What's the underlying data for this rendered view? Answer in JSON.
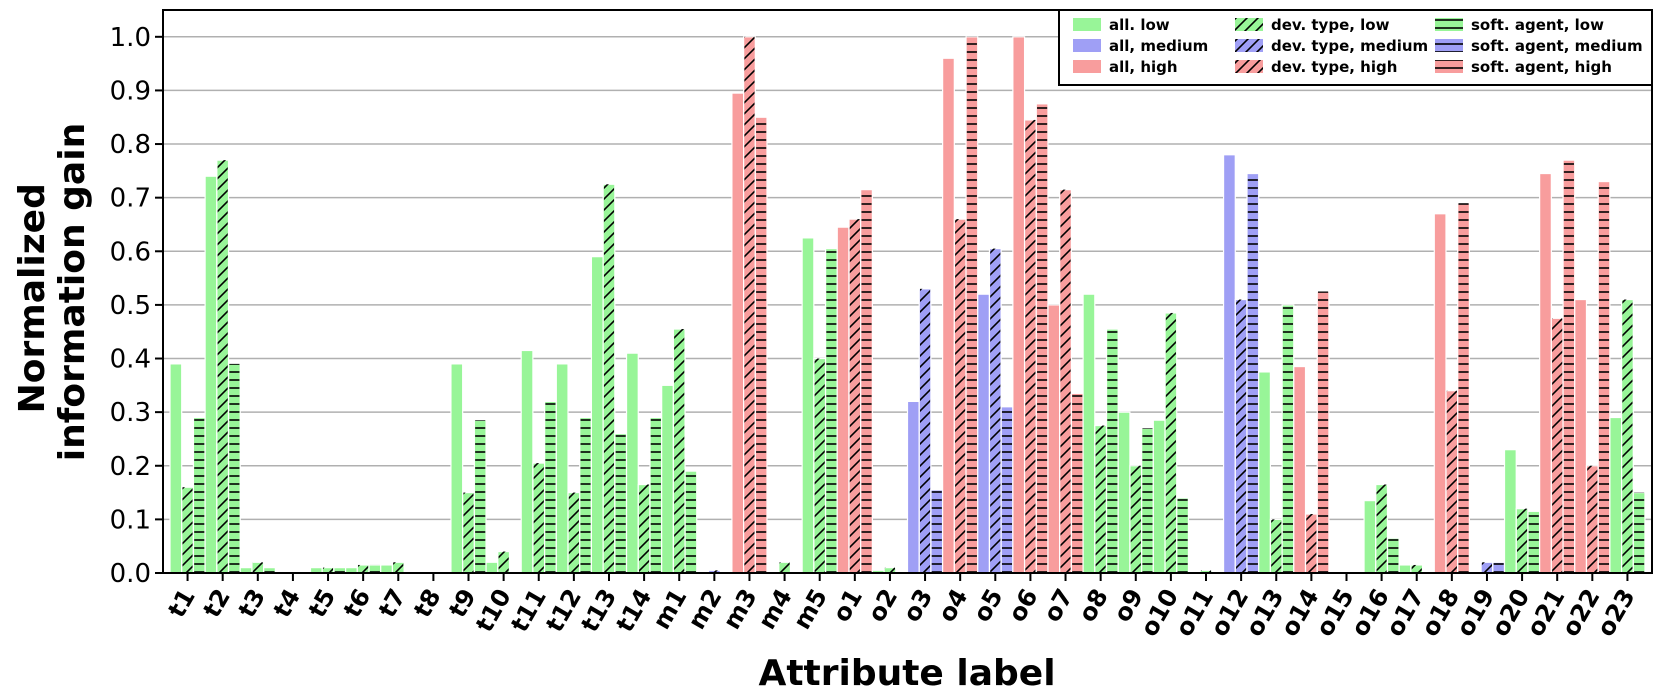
{
  "chart_data": {
    "type": "bar",
    "title": "",
    "xlabel": "Attribute label",
    "ylabel_lines": [
      "Normalized",
      "information gain"
    ],
    "ylim": [
      0,
      1.05
    ],
    "yticks": [
      "0.0",
      "0.1",
      "0.2",
      "0.3",
      "0.4",
      "0.5",
      "0.6",
      "0.7",
      "0.8",
      "0.9",
      "1.0"
    ],
    "grid": "horizontal",
    "legend_position": "top-right",
    "categories": [
      "t1",
      "t2",
      "t3",
      "t4",
      "t5",
      "t6",
      "t7",
      "t8",
      "t9",
      "t10",
      "t11",
      "t12",
      "t13",
      "t14",
      "m1",
      "m2",
      "m3",
      "m4",
      "m5",
      "o1",
      "o2",
      "o3",
      "o4",
      "o5",
      "o6",
      "o7",
      "o8",
      "o9",
      "o10",
      "o11",
      "o12",
      "o13",
      "o14",
      "o15",
      "o16",
      "o17",
      "o18",
      "o19",
      "o20",
      "o21",
      "o22",
      "o23"
    ],
    "colors": {
      "low": "#98f598",
      "medium": "#9f9ff5",
      "high": "#f89d9d",
      "edge": "#ffffff",
      "hatch": "#000000"
    },
    "series": [
      {
        "name": "all",
        "pattern": "solid"
      },
      {
        "name": "dev. type",
        "pattern": "diagonal"
      },
      {
        "name": "soft. agent",
        "pattern": "horizontal"
      }
    ],
    "legend": [
      [
        "all. low",
        "all, medium",
        "all, high"
      ],
      [
        "dev. type, low",
        "dev. type, medium",
        "dev. type, high"
      ],
      [
        "soft. agent, low",
        "soft. agent, medium",
        "soft. agent, high"
      ]
    ],
    "bars": [
      {
        "cat": "t1",
        "class": "low",
        "values": [
          0.39,
          0.16,
          0.29
        ]
      },
      {
        "cat": "t2",
        "class": "low",
        "values": [
          0.74,
          0.77,
          0.39
        ]
      },
      {
        "cat": "t3",
        "class": "low",
        "values": [
          0.01,
          0.02,
          0.01
        ]
      },
      {
        "cat": "t4",
        "class": "low",
        "values": [
          0,
          0,
          0
        ]
      },
      {
        "cat": "t5",
        "class": "low",
        "values": [
          0.01,
          0.01,
          0.01
        ]
      },
      {
        "cat": "t6",
        "class": "low",
        "values": [
          0.01,
          0.015,
          0.015
        ]
      },
      {
        "cat": "t7",
        "class": "low",
        "values": [
          0.015,
          0.02,
          0
        ]
      },
      {
        "cat": "t8",
        "class": "low",
        "values": [
          0,
          0,
          0
        ]
      },
      {
        "cat": "t9",
        "class": "low",
        "values": [
          0.39,
          0.15,
          0.285
        ]
      },
      {
        "cat": "t10",
        "class": "low",
        "values": [
          0.02,
          0.04,
          0
        ]
      },
      {
        "cat": "t11",
        "class": "low",
        "values": [
          0.415,
          0.205,
          0.32
        ]
      },
      {
        "cat": "t12",
        "class": "low",
        "values": [
          0.39,
          0.15,
          0.29
        ]
      },
      {
        "cat": "t13",
        "class": "low",
        "values": [
          0.59,
          0.725,
          0.26
        ]
      },
      {
        "cat": "t14",
        "class": "low",
        "values": [
          0.41,
          0.165,
          0.29
        ]
      },
      {
        "cat": "m1",
        "class": "low",
        "values": [
          0.35,
          0.455,
          0.19
        ]
      },
      {
        "cat": "m2",
        "class": "medium",
        "values": [
          0,
          0.005,
          0
        ]
      },
      {
        "cat": "m3",
        "class": "high",
        "values": [
          0.895,
          1.0,
          0.85
        ]
      },
      {
        "cat": "m4",
        "class": "low",
        "values": [
          0,
          0.02,
          0
        ]
      },
      {
        "cat": "m5",
        "class": "low",
        "values": [
          0.625,
          0.4,
          0.605
        ]
      },
      {
        "cat": "o1",
        "class": "high",
        "values": [
          0.645,
          0.66,
          0.715
        ]
      },
      {
        "cat": "o2",
        "class": "low",
        "values": [
          0.005,
          0.01,
          0
        ]
      },
      {
        "cat": "o3",
        "class": "medium",
        "values": [
          0.32,
          0.53,
          0.155
        ]
      },
      {
        "cat": "o4",
        "class": "high",
        "values": [
          0.96,
          0.66,
          1.0
        ]
      },
      {
        "cat": "o5",
        "class": "medium",
        "values": [
          0.52,
          0.605,
          0.31
        ]
      },
      {
        "cat": "o6",
        "class": "high",
        "values": [
          1.0,
          0.845,
          0.875
        ]
      },
      {
        "cat": "o7",
        "class": "high",
        "values": [
          0.5,
          0.715,
          0.335
        ]
      },
      {
        "cat": "o8",
        "class": "low",
        "values": [
          0.52,
          0.275,
          0.455
        ]
      },
      {
        "cat": "o9",
        "class": "low",
        "values": [
          0.3,
          0.2,
          0.27
        ]
      },
      {
        "cat": "o10",
        "class": "low",
        "values": [
          0.285,
          0.485,
          0.14
        ]
      },
      {
        "cat": "o11",
        "class": "low",
        "values": [
          0,
          0.005,
          0
        ]
      },
      {
        "cat": "o12",
        "class": "medium",
        "values": [
          0.78,
          0.51,
          0.745
        ]
      },
      {
        "cat": "o13",
        "class": "low",
        "values": [
          0.375,
          0.1,
          0.5
        ]
      },
      {
        "cat": "o14",
        "class": "high",
        "values": [
          0.385,
          0.11,
          0.525
        ]
      },
      {
        "cat": "o15",
        "class": "low",
        "values": [
          0,
          0,
          0
        ]
      },
      {
        "cat": "o16",
        "class": "low",
        "values": [
          0.135,
          0.165,
          0.065
        ]
      },
      {
        "cat": "o17",
        "class": "low",
        "values": [
          0.015,
          0.015,
          0
        ]
      },
      {
        "cat": "o18",
        "class": "high",
        "values": [
          0.67,
          0.34,
          0.69
        ]
      },
      {
        "cat": "o19",
        "class": "medium",
        "values": [
          0,
          0.02,
          0.02
        ]
      },
      {
        "cat": "o20",
        "class": "low",
        "values": [
          0.23,
          0.12,
          0.115
        ]
      },
      {
        "cat": "o21",
        "class": "high",
        "values": [
          0.745,
          0.475,
          0.77
        ]
      },
      {
        "cat": "o22",
        "class": "high",
        "values": [
          0.51,
          0.2,
          0.73
        ]
      },
      {
        "cat": "o23",
        "class": "low",
        "values": [
          0.29,
          0.51,
          0.15
        ]
      }
    ]
  }
}
